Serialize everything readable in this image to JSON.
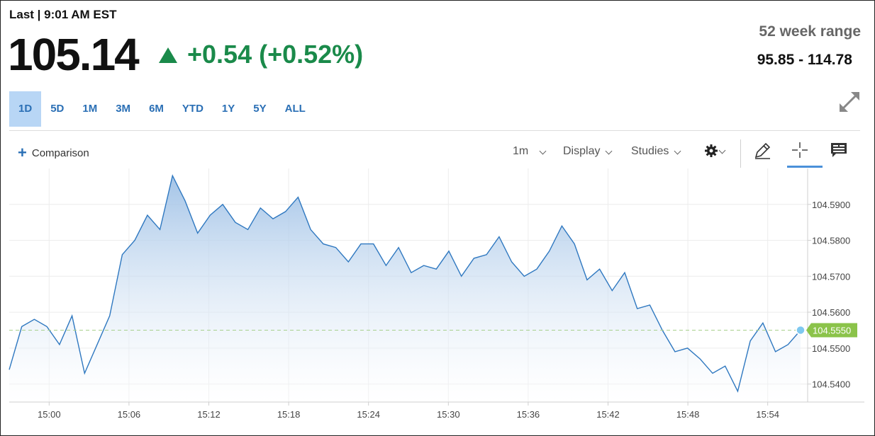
{
  "header": {
    "last_label": "Last | 9:01 AM EST",
    "price": "105.14",
    "change": "+0.54 (+0.52%)",
    "range_label": "52 week range",
    "range_value": "95.85 - 114.78"
  },
  "tabs": [
    {
      "label": "1D",
      "active": true
    },
    {
      "label": "5D"
    },
    {
      "label": "1M"
    },
    {
      "label": "3M"
    },
    {
      "label": "6M"
    },
    {
      "label": "YTD"
    },
    {
      "label": "1Y"
    },
    {
      "label": "5Y"
    },
    {
      "label": "ALL"
    }
  ],
  "toolbar": {
    "comparison": "Comparison",
    "interval": "1m",
    "display": "Display",
    "studies": "Studies"
  },
  "icons": {
    "expand": "expand-icon",
    "settings": "gear-icon",
    "draw": "pencil-icon",
    "crosshair": "crosshair-icon",
    "news": "news-icon"
  },
  "colors": {
    "up": "#1a8a4a",
    "line": "#2f78c0",
    "accent": "#2a6fb5",
    "last_marker": "#8bc34a"
  },
  "chart_data": {
    "type": "area",
    "x_ticks": [
      "15:00",
      "15:06",
      "15:12",
      "15:18",
      "15:24",
      "15:30",
      "15:36",
      "15:42",
      "15:48",
      "15:54"
    ],
    "y_ticks": [
      "104.5900",
      "104.5800",
      "104.5700",
      "104.5600",
      "104.5500",
      "104.5400"
    ],
    "ylim": [
      104.535,
      104.6
    ],
    "x_start": "14:57",
    "x_end": "15:57",
    "last_value_label": "104.5550",
    "last_value": 104.555,
    "series": [
      {
        "values": [
          104.544,
          104.556,
          104.558,
          104.556,
          104.551,
          104.559,
          104.543,
          104.551,
          104.559,
          104.576,
          104.58,
          104.587,
          104.583,
          104.598,
          104.591,
          104.582,
          104.587,
          104.59,
          104.585,
          104.583,
          104.589,
          104.586,
          104.588,
          104.592,
          104.583,
          104.579,
          104.578,
          104.574,
          104.579,
          104.579,
          104.573,
          104.578,
          104.571,
          104.573,
          104.572,
          104.577,
          104.57,
          104.575,
          104.576,
          104.581,
          104.574,
          104.57,
          104.572,
          104.577,
          104.584,
          104.579,
          104.569,
          104.572,
          104.566,
          104.571,
          104.561,
          104.562,
          104.555,
          104.549,
          104.55,
          104.547,
          104.543,
          104.545,
          104.538,
          104.552,
          104.557,
          104.549,
          104.551,
          104.555
        ]
      }
    ]
  }
}
